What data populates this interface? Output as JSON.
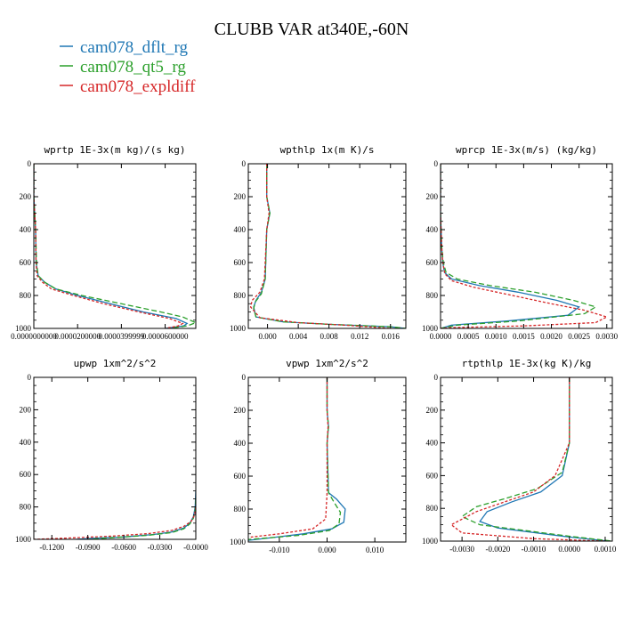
{
  "title": "CLUBB VAR at340E,-60N",
  "legend": [
    {
      "name": "cam078_dflt_rg",
      "color": "#1f77b4",
      "dash": ""
    },
    {
      "name": "cam078_qt5_rg",
      "color": "#2ca02c",
      "dash": "6,3"
    },
    {
      "name": "cam078_expldiff",
      "color": "#d62728",
      "dash": "3,2"
    }
  ],
  "colors": {
    "dflt": "#1f77b4",
    "qt5": "#2ca02c",
    "expl": "#d62728",
    "axis": "#000000"
  },
  "chart_data": [
    {
      "type": "line",
      "title": "wprtp  1E-3x(m kg)/(s kg)",
      "xlim": [
        0,
        7.4e-05
      ],
      "ylim": [
        1000,
        0
      ],
      "xticks": [
        0,
        2e-05,
        4e-05,
        6e-05
      ],
      "xtick_labels": [
        "0.0000000000",
        "0.0000200000",
        "0.0000399999",
        "0.0000600000"
      ],
      "yticks": [
        0,
        200,
        400,
        600,
        800,
        1000
      ],
      "series": [
        {
          "name": "cam078_dflt_rg",
          "x": [
            0,
            0,
            8e-07,
            1e-06,
            2e-06,
            5e-06,
            1e-05,
            2e-05,
            3.5e-05,
            5e-05,
            6.5e-05,
            7e-05,
            6.85e-05,
            6e-05
          ],
          "y": [
            0,
            200,
            400,
            600,
            680,
            720,
            760,
            800,
            850,
            900,
            940,
            970,
            985,
            1000
          ]
        },
        {
          "name": "cam078_qt5_rg",
          "x": [
            0,
            0,
            8e-07,
            1.2e-06,
            2e-06,
            5e-06,
            1e-05,
            2.2e-05,
            4e-05,
            5.8e-05,
            6.8e-05,
            7.4e-05,
            7e-05,
            6.2e-05
          ],
          "y": [
            0,
            200,
            400,
            600,
            680,
            720,
            760,
            800,
            850,
            900,
            930,
            965,
            985,
            1000
          ]
        },
        {
          "name": "cam078_expldiff",
          "x": [
            0,
            0,
            8e-07,
            1e-06,
            1.5e-06,
            4e-06,
            8e-06,
            1.8e-05,
            3.2e-05,
            4.8e-05,
            6.2e-05,
            6.8e-05,
            6.6e-05,
            6e-05
          ],
          "y": [
            0,
            200,
            400,
            600,
            680,
            720,
            760,
            800,
            850,
            900,
            940,
            970,
            985,
            1000
          ]
        }
      ]
    },
    {
      "type": "line",
      "title": "wpthlp  1x(m K)/s",
      "xlim": [
        -0.0025,
        0.018
      ],
      "ylim": [
        1000,
        0
      ],
      "xticks": [
        0,
        0.004,
        0.008,
        0.012,
        0.016
      ],
      "xtick_labels": [
        "0.000",
        "0.004",
        "0.008",
        "0.012",
        "0.016"
      ],
      "yticks": [
        0,
        200,
        400,
        600,
        800,
        1000
      ],
      "series": [
        {
          "name": "cam078_dflt_rg",
          "x": [
            -0.0001,
            -0.0001,
            0.0003,
            -0.0001,
            -0.0003,
            -0.0008,
            -0.0015,
            -0.0018,
            -0.0015,
            0.002,
            0.008,
            0.016,
            0.018
          ],
          "y": [
            0,
            200,
            300,
            400,
            700,
            780,
            830,
            870,
            930,
            960,
            975,
            990,
            1000
          ]
        },
        {
          "name": "cam078_qt5_rg",
          "x": [
            -0.0001,
            -0.0001,
            0.0003,
            -0.0001,
            -0.0003,
            -0.0008,
            -0.0016,
            -0.0018,
            -0.0015,
            0.002,
            0.008,
            0.016,
            0.018
          ],
          "y": [
            0,
            200,
            300,
            400,
            700,
            790,
            840,
            880,
            930,
            960,
            975,
            990,
            1000
          ]
        },
        {
          "name": "cam078_expldiff",
          "x": [
            -0.0001,
            -0.0001,
            0.0002,
            -0.0001,
            -0.0004,
            -0.001,
            -0.002,
            -0.0022,
            -0.001,
            0.004,
            0.01,
            0.016
          ],
          "y": [
            0,
            200,
            300,
            400,
            700,
            780,
            830,
            870,
            935,
            965,
            980,
            1000
          ]
        }
      ]
    },
    {
      "type": "line",
      "title": "wprcp  1E-3x(m/s) (kg/kg)",
      "xlim": [
        0,
        0.0031
      ],
      "ylim": [
        1000,
        0
      ],
      "xticks": [
        0,
        0.0005,
        0.001,
        0.0015,
        0.002,
        0.0025,
        0.003
      ],
      "xtick_labels": [
        "0.0000",
        "0.0005",
        "0.0010",
        "0.0015",
        "0.0020",
        "0.0025",
        "0.0030"
      ],
      "yticks": [
        0,
        200,
        400,
        600,
        800,
        1000
      ],
      "series": [
        {
          "name": "cam078_dflt_rg",
          "x": [
            0,
            0,
            2e-05,
            4e-05,
            7e-05,
            0.0002,
            0.0007,
            0.0014,
            0.0021,
            0.0025,
            0.0023,
            0.0012,
            0.0002,
            0
          ],
          "y": [
            0,
            300,
            500,
            600,
            660,
            700,
            740,
            780,
            830,
            870,
            920,
            955,
            980,
            1000
          ]
        },
        {
          "name": "cam078_qt5_rg",
          "x": [
            0,
            0,
            2e-05,
            5e-05,
            0.0001,
            0.0003,
            0.0009,
            0.0017,
            0.0024,
            0.0028,
            0.0026,
            0.0014,
            0.0003,
            0
          ],
          "y": [
            0,
            300,
            500,
            600,
            660,
            700,
            740,
            780,
            830,
            870,
            910,
            955,
            980,
            1000
          ]
        },
        {
          "name": "cam078_expldiff",
          "x": [
            0,
            0,
            2e-05,
            4e-05,
            8e-05,
            0.0002,
            0.0006,
            0.0013,
            0.002,
            0.0026,
            0.003,
            0.0028,
            0.0015,
            0.0002,
            0
          ],
          "y": [
            0,
            300,
            500,
            600,
            670,
            710,
            750,
            800,
            850,
            890,
            930,
            965,
            985,
            995,
            1000
          ]
        }
      ]
    },
    {
      "type": "line",
      "title": "upwp  1xm^2/s^2",
      "xlim": [
        -0.135,
        0
      ],
      "ylim": [
        1000,
        0
      ],
      "xticks": [
        -0.12,
        -0.09,
        -0.06,
        -0.03,
        0
      ],
      "xtick_labels": [
        "-0.1200",
        "-0.0900",
        "-0.0600",
        "-0.0300",
        "-0.0000"
      ],
      "yticks": [
        0,
        200,
        400,
        600,
        800,
        1000
      ],
      "series": [
        {
          "name": "cam078_dflt_rg",
          "x": [
            0,
            -0.0005,
            -0.002,
            -0.005,
            -0.01,
            -0.02,
            -0.035,
            -0.06,
            -0.09,
            -0.1
          ],
          "y": [
            700,
            800,
            860,
            900,
            930,
            955,
            970,
            985,
            995,
            1000
          ]
        },
        {
          "name": "cam078_qt5_rg",
          "x": [
            0,
            -0.0005,
            -0.002,
            -0.005,
            -0.01,
            -0.02,
            -0.04,
            -0.065,
            -0.09
          ],
          "y": [
            750,
            820,
            870,
            905,
            935,
            958,
            975,
            988,
            1000
          ]
        },
        {
          "name": "cam078_expldiff",
          "x": [
            0,
            -0.001,
            -0.004,
            -0.01,
            -0.02,
            -0.04,
            -0.07,
            -0.1,
            -0.125,
            -0.135
          ],
          "y": [
            800,
            850,
            890,
            920,
            945,
            965,
            980,
            990,
            997,
            1000
          ]
        }
      ]
    },
    {
      "type": "line",
      "title": "vpwp  1xm^2/s^2",
      "xlim": [
        -0.0165,
        0.0165
      ],
      "ylim": [
        1000,
        0
      ],
      "xticks": [
        -0.01,
        0,
        0.01
      ],
      "xtick_labels": [
        "-0.010",
        "0.000",
        "0.010"
      ],
      "yticks": [
        0,
        200,
        400,
        600,
        800,
        1000
      ],
      "series": [
        {
          "name": "cam078_dflt_rg",
          "x": [
            0,
            0,
            0.0003,
            0,
            0.0003,
            0.002,
            0.0038,
            0.0035,
            0.001,
            -0.005,
            -0.012,
            -0.0165
          ],
          "y": [
            0,
            200,
            300,
            400,
            700,
            740,
            800,
            880,
            920,
            950,
            975,
            990
          ]
        },
        {
          "name": "cam078_qt5_rg",
          "x": [
            0,
            0,
            0.0003,
            0,
            0.0003,
            0.0015,
            0.0028,
            0.0025,
            0.0005,
            -0.006,
            -0.0165
          ],
          "y": [
            0,
            200,
            300,
            400,
            700,
            760,
            820,
            890,
            930,
            960,
            985
          ]
        },
        {
          "name": "cam078_expldiff",
          "x": [
            0,
            0,
            0.0002,
            0,
            0,
            -0.0003,
            -0.003,
            -0.01,
            -0.016
          ],
          "y": [
            0,
            200,
            300,
            400,
            700,
            860,
            920,
            950,
            970
          ]
        }
      ]
    },
    {
      "type": "line",
      "title": "rtpthlp  1E-3x(kg K)/kg",
      "xlim": [
        -0.0036,
        0.0012
      ],
      "ylim": [
        1000,
        0
      ],
      "xticks": [
        -0.003,
        -0.002,
        -0.001,
        0,
        0.001
      ],
      "xtick_labels": [
        "-0.0030",
        "-0.0020",
        "-0.0010",
        "0.0000",
        "0.0010"
      ],
      "yticks": [
        0,
        200,
        400,
        600,
        800,
        1000
      ],
      "series": [
        {
          "name": "cam078_dflt_rg",
          "x": [
            0,
            0,
            -0.0002,
            -0.0008,
            -0.0016,
            -0.0023,
            -0.0025,
            -0.002,
            0,
            0.0011
          ],
          "y": [
            0,
            400,
            600,
            700,
            760,
            820,
            880,
            920,
            975,
            1000
          ]
        },
        {
          "name": "cam078_qt5_rg",
          "x": [
            0,
            0,
            -0.0002,
            -0.0009,
            -0.0018,
            -0.0026,
            -0.003,
            -0.0025,
            0,
            0.0012
          ],
          "y": [
            0,
            400,
            580,
            680,
            740,
            790,
            850,
            900,
            970,
            1000
          ]
        },
        {
          "name": "cam078_expldiff",
          "x": [
            0,
            0,
            -0.0004,
            -0.001,
            -0.0018,
            -0.0026,
            -0.0033,
            -0.003,
            -0.001,
            0.001
          ],
          "y": [
            0,
            400,
            600,
            700,
            760,
            820,
            900,
            950,
            985,
            1000
          ]
        }
      ]
    }
  ]
}
